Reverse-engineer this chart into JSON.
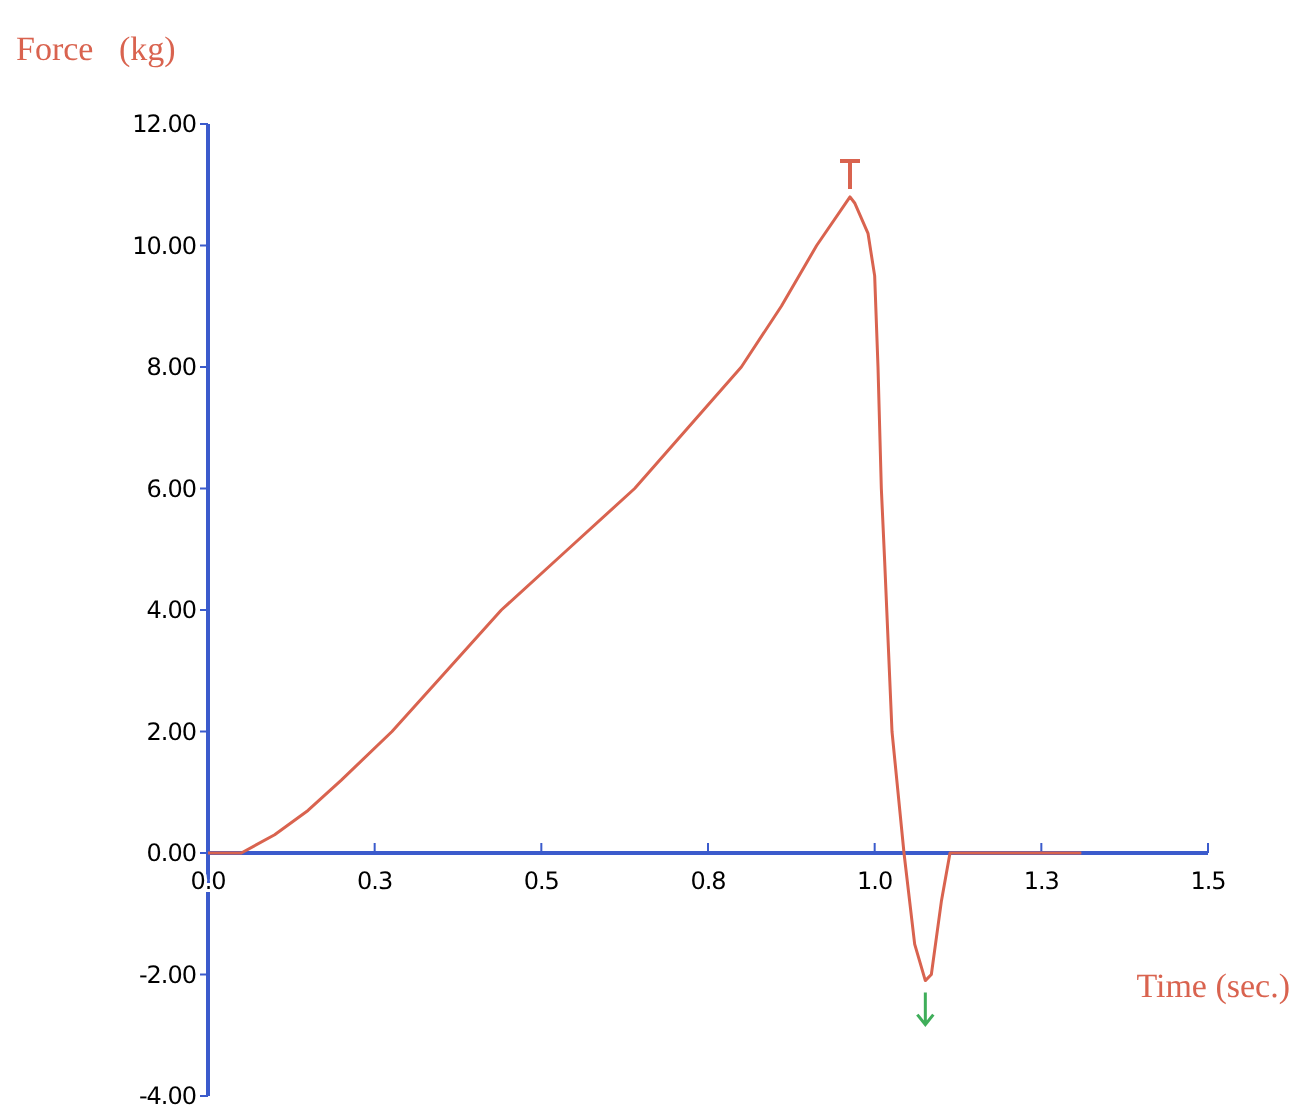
{
  "chart_data": {
    "type": "line",
    "xlabel": "Time (sec.)",
    "ylabel": "Force   (kg)",
    "x": [
      0,
      0.05,
      0.1,
      0.15,
      0.2,
      0.276,
      0.35,
      0.44,
      0.54,
      0.64,
      0.72,
      0.8,
      0.86,
      0.913,
      0.963,
      0.97,
      0.99,
      1.0,
      1.005,
      1.01,
      1.015,
      1.026,
      1.044,
      1.06,
      1.076,
      1.085,
      1.1,
      1.113,
      1.31
    ],
    "series": [
      {
        "color": "#d9634f",
        "values": [
          0,
          0,
          0.3,
          0.7,
          1.2,
          2,
          2.9,
          4,
          5,
          6,
          7,
          8,
          9,
          10,
          10.8,
          10.7,
          10.2,
          9.5,
          8,
          6,
          4.8,
          2,
          0,
          -1.5,
          -2.1,
          -2,
          -0.8,
          0,
          0
        ]
      }
    ],
    "xlim": [
      0,
      1.5
    ],
    "ylim": [
      -4,
      12
    ],
    "xticks": [
      {
        "value": 0,
        "label": "0.0"
      },
      {
        "value": 0.25,
        "label": "0.3"
      },
      {
        "value": 0.5,
        "label": "0.5"
      },
      {
        "value": 0.75,
        "label": "0.8"
      },
      {
        "value": 1,
        "label": "1.0"
      },
      {
        "value": 1.25,
        "label": "1.3"
      },
      {
        "value": 1.5,
        "label": "1.5"
      }
    ],
    "yticks": [
      {
        "value": -4,
        "label": "-4.00"
      },
      {
        "value": -2,
        "label": "-2.00"
      },
      {
        "value": 0,
        "label": "0.00"
      },
      {
        "value": 2,
        "label": "2.00"
      },
      {
        "value": 4,
        "label": "4.00"
      },
      {
        "value": 6,
        "label": "6.00"
      },
      {
        "value": 8,
        "label": "8.00"
      },
      {
        "value": 10,
        "label": "10.00"
      },
      {
        "value": 12,
        "label": "12.00"
      }
    ],
    "marker": "none",
    "line_style": "solid"
  }
}
